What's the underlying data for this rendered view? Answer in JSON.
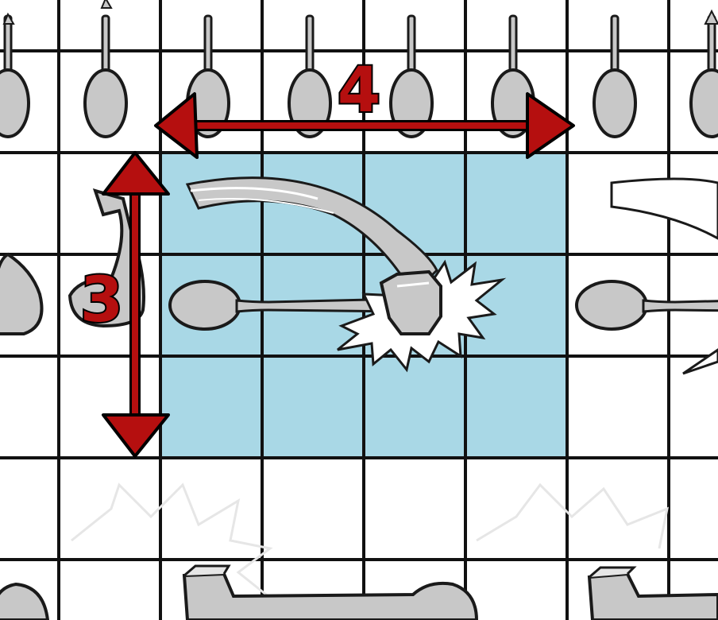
{
  "board": {
    "width_label": "4",
    "height_label": "3"
  },
  "colors": {
    "highlight": "#a9d8e6",
    "grid": "#111111",
    "arrow": "#b50f0f",
    "arrow_outline": "#000000",
    "piece_fill": "#c8c8c8",
    "piece_outline": "#1a1a1a"
  },
  "icons": {
    "piece": "spoon-icon",
    "attack": "hammer-icon",
    "impact": "starburst-icon"
  }
}
